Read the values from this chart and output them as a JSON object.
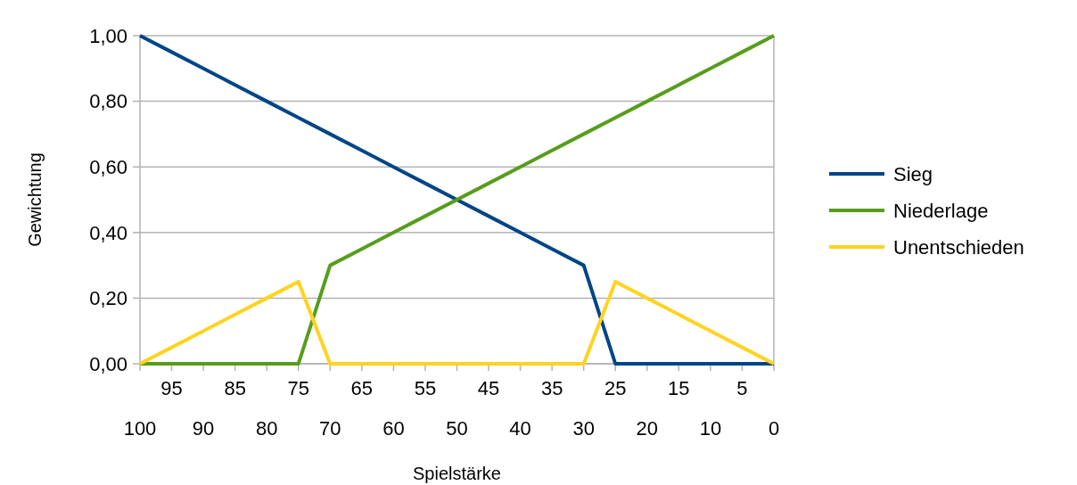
{
  "chart_data": {
    "type": "line",
    "xlabel": "Spielstärke",
    "ylabel": "Gewichtung",
    "x": [
      100,
      95,
      90,
      85,
      80,
      75,
      70,
      65,
      60,
      55,
      50,
      45,
      40,
      35,
      30,
      25,
      20,
      15,
      10,
      5,
      0
    ],
    "series": [
      {
        "name": "Sieg",
        "color": "#004586",
        "values": [
          1,
          0.95,
          0.9,
          0.85,
          0.8,
          0.75,
          0.7,
          0.65,
          0.6,
          0.55,
          0.5,
          0.45,
          0.4,
          0.35,
          0.3,
          0,
          0,
          0,
          0,
          0,
          0
        ]
      },
      {
        "name": "Niederlage",
        "color": "#579d1c",
        "values": [
          0,
          0,
          0,
          0,
          0,
          0,
          0.3,
          0.35,
          0.4,
          0.45,
          0.5,
          0.55,
          0.6,
          0.65,
          0.7,
          0.75,
          0.8,
          0.85,
          0.9,
          0.95,
          1
        ]
      },
      {
        "name": "Unentschieden",
        "color": "#ffd320",
        "values": [
          0,
          0.05,
          0.1,
          0.15,
          0.2,
          0.25,
          0,
          0,
          0,
          0,
          0,
          0,
          0,
          0,
          0,
          0.25,
          0.2,
          0.15,
          0.1,
          0.05,
          0
        ]
      }
    ],
    "xlim": [
      100,
      0
    ],
    "xticks": [
      100,
      90,
      80,
      70,
      60,
      50,
      40,
      30,
      20,
      10,
      0
    ],
    "x2lim": [
      100,
      0
    ],
    "x2ticks": [
      95,
      85,
      75,
      65,
      55,
      45,
      35,
      25,
      15,
      5
    ],
    "ylim": [
      0,
      1
    ],
    "yticks": [
      {
        "value": 0,
        "label": "0,00"
      },
      {
        "value": 0.2,
        "label": "0,20"
      },
      {
        "value": 0.4,
        "label": "0,40"
      },
      {
        "value": 0.6,
        "label": "0,60"
      },
      {
        "value": 0.8,
        "label": "0,80"
      },
      {
        "value": 1,
        "label": "1,00"
      }
    ],
    "grid": "y",
    "legend": "right",
    "marker": "none",
    "line_style": "solid"
  }
}
